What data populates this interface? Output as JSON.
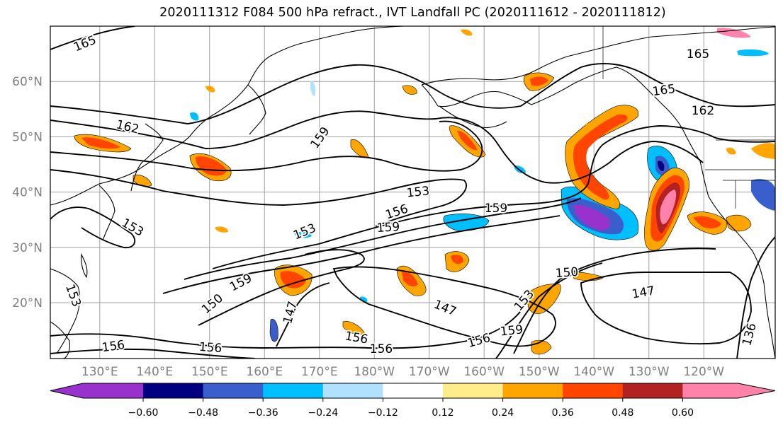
{
  "title": "2020111312 F084 500 hPa refract., IVT Landfall PC (2020111612 - 2020111812)",
  "map": {
    "lat_labels": [
      {
        "deg": 60,
        "text": "60°N"
      },
      {
        "deg": 50,
        "text": "50°N"
      },
      {
        "deg": 40,
        "text": "40°N"
      },
      {
        "deg": 30,
        "text": "30°N"
      },
      {
        "deg": 20,
        "text": "20°N"
      }
    ],
    "lon_labels": [
      {
        "deg": 130,
        "text": "130°E"
      },
      {
        "deg": 140,
        "text": "140°E"
      },
      {
        "deg": 150,
        "text": "150°E"
      },
      {
        "deg": 160,
        "text": "160°E"
      },
      {
        "deg": 170,
        "text": "170°E"
      },
      {
        "deg": 180,
        "text": "180°W"
      },
      {
        "deg": 190,
        "text": "170°W"
      },
      {
        "deg": 200,
        "text": "160°W"
      },
      {
        "deg": 210,
        "text": "150°W"
      },
      {
        "deg": 220,
        "text": "140°W"
      },
      {
        "deg": 230,
        "text": "130°W"
      },
      {
        "deg": 240,
        "text": "120°W"
      }
    ],
    "contour_labels": [
      "165",
      "165",
      "165",
      "162",
      "162",
      "159",
      "159",
      "159",
      "159",
      "159",
      "156",
      "156",
      "156",
      "156",
      "156",
      "156",
      "153",
      "153",
      "153",
      "153",
      "153",
      "150",
      "150",
      "147",
      "147",
      "147",
      "136"
    ]
  },
  "colorbar": {
    "colors": [
      "#9932cc",
      "#000080",
      "#3a5fcd",
      "#00bfff",
      "#b0e2ff",
      "#ffffff",
      "#ffec8b",
      "#ffa500",
      "#ff4500",
      "#b22222",
      "#ff82ab"
    ],
    "tick_labels": [
      "−0.60",
      "−0.48",
      "−0.36",
      "−0.24",
      "−0.12",
      "0.12",
      "0.24",
      "0.36",
      "0.48",
      "0.60"
    ]
  }
}
